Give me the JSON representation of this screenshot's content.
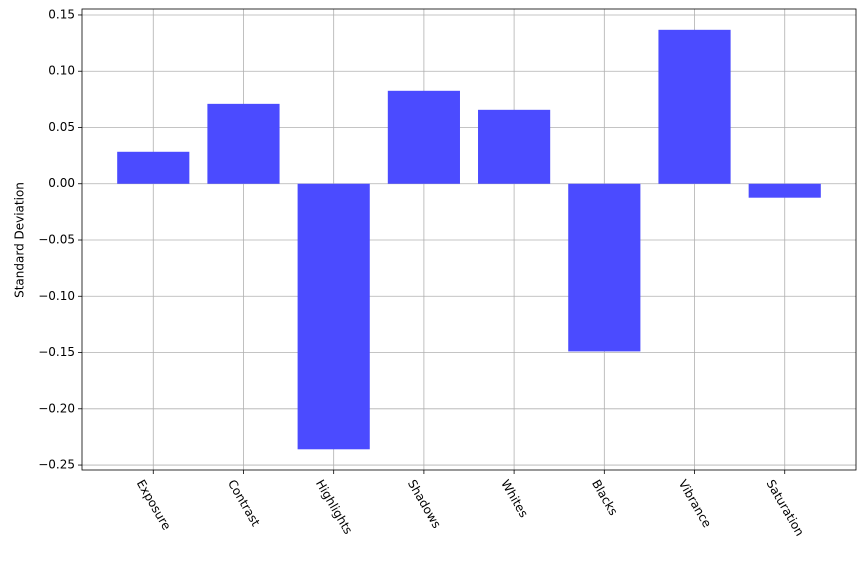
{
  "chart_data": {
    "type": "bar",
    "categories": [
      "Exposure",
      "Contrast",
      "Highlights",
      "Shadows",
      "Whites",
      "Blacks",
      "Vibrance",
      "Saturation"
    ],
    "values": [
      0.0284,
      0.071,
      -0.236,
      0.0826,
      0.0657,
      -0.149,
      0.1368,
      -0.0124
    ],
    "color": "#4b4bff",
    "y_label": "Standard Deviation",
    "ylim": [
      -0.2544,
      0.1553
    ],
    "yticks": [
      {
        "value": -0.25,
        "label": "−0.25"
      },
      {
        "value": -0.2,
        "label": "−0.20"
      },
      {
        "value": -0.15,
        "label": "−0.15"
      },
      {
        "value": -0.1,
        "label": "−0.10"
      },
      {
        "value": -0.05,
        "label": "−0.05"
      },
      {
        "value": 0,
        "label": "0.00"
      },
      0.05,
      {
        "value": 0.1,
        "label": "0.10"
      },
      0.15
    ],
    "grid": true
  }
}
